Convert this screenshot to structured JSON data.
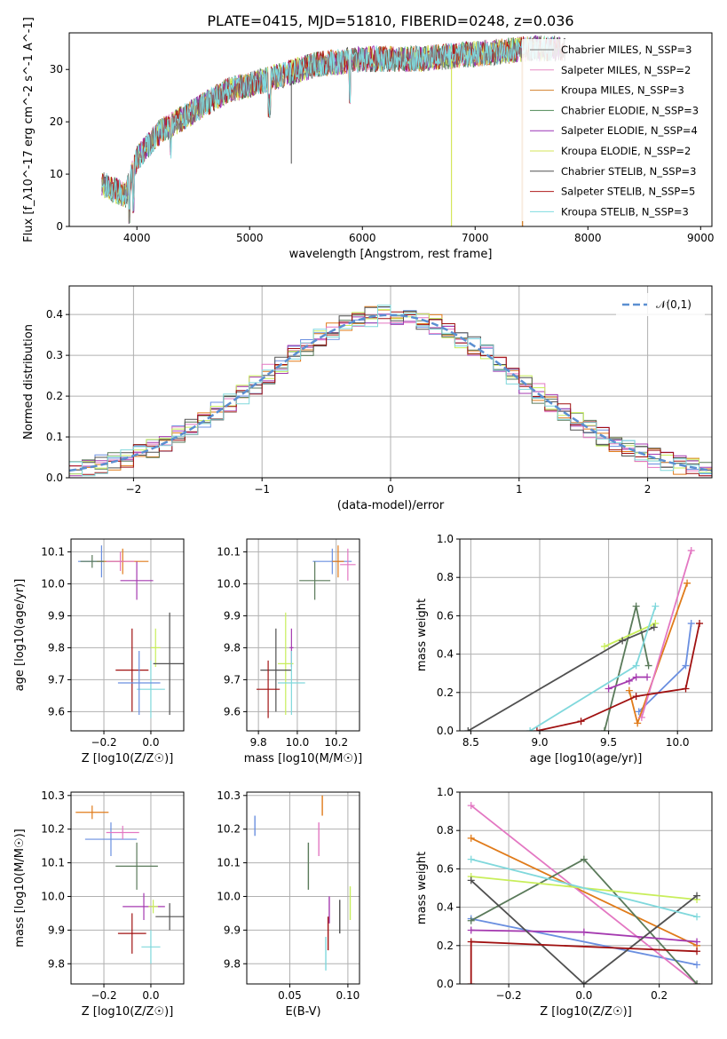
{
  "figure": {
    "title": "PLATE=0415, MJD=51810, FIBERID=0248, z=0.036"
  },
  "colors": {
    "series": [
      "#7a7a7a",
      "#e78ac3",
      "#d27f2a",
      "#4e8a55",
      "#9a32b5",
      "#d4e65a",
      "#505050",
      "#b01c1c",
      "#7fdbe0"
    ],
    "model_curve": [
      "#6a8fe0",
      "#e07b1a",
      "#e377c2",
      "#5a7a5a",
      "#a53ab0",
      "#c8ee5a",
      "#505050",
      "#a01010",
      "#80d8dc"
    ],
    "grid": "#b0b0b0",
    "normal_curve": "#5b8fd1"
  },
  "chart_data": [
    {
      "id": "spectrum",
      "type": "line",
      "xlabel": "wavelength [Angstrom, rest frame]",
      "ylabel": "Flux [f_λ10^-17 erg cm^-2 s^-1 A^-1]",
      "xlim": [
        3400,
        9100
      ],
      "ylim": [
        0,
        37
      ],
      "xticks": [
        4000,
        5000,
        6000,
        7000,
        8000,
        9000
      ],
      "yticks": [
        0,
        10,
        20,
        30
      ],
      "spectrum_envelope": {
        "x": [
          3700,
          3900,
          4000,
          4200,
          4500,
          4800,
          5000,
          5300,
          5600,
          6000,
          6500,
          7000,
          7500,
          7800
        ],
        "y": [
          8,
          6,
          13,
          18,
          22,
          26,
          27,
          29,
          31,
          32,
          32,
          33,
          34,
          34
        ]
      },
      "legend": [
        "Chabrier MILES, N_SSP=3",
        "Salpeter MILES, N_SSP=2",
        "Kroupa MILES, N_SSP=3",
        "Chabrier ELODIE, N_SSP=3",
        "Salpeter ELODIE, N_SSP=4",
        "Kroupa ELODIE, N_SSP=2",
        "Chabrier STELIB, N_SSP=3",
        "Salpeter STELIB, N_SSP=5",
        "Kroupa STELIB, N_SSP=3"
      ],
      "legend_position": "top-right",
      "grid": false
    },
    {
      "id": "residuals",
      "type": "histogram",
      "xlabel": "(data-model)/error",
      "ylabel": "Normed distribution",
      "xlim": [
        -2.5,
        2.5
      ],
      "ylim": [
        0,
        0.47
      ],
      "xticks": [
        -2,
        -1,
        0,
        1,
        2
      ],
      "yticks": [
        0.0,
        0.1,
        0.2,
        0.3,
        0.4
      ],
      "legend": [
        "𝒩(0,1)"
      ],
      "legend_position": "top-right",
      "grid": true
    },
    {
      "id": "age_vs_Z",
      "type": "scatter",
      "xlabel": "Z [log10(Z/Z☉)]",
      "ylabel": "age  [log10(age/yr)]",
      "xlim": [
        -0.34,
        0.14
      ],
      "ylim": [
        9.54,
        10.14
      ],
      "xticks": [
        -0.2,
        0.0
      ],
      "xticklabels": [
        "−0.2",
        "0.0"
      ],
      "yticks": [
        9.6,
        9.7,
        9.8,
        9.9,
        10.0,
        10.1
      ],
      "points": [
        {
          "x": -0.21,
          "y": 10.07,
          "dx": 0.1,
          "dy": 0.05
        },
        {
          "x": -0.12,
          "y": 10.07,
          "dx": 0.11,
          "dy": 0.04
        },
        {
          "x": -0.13,
          "y": 10.07,
          "dx": 0.06,
          "dy": 0.03
        },
        {
          "x": -0.25,
          "y": 10.07,
          "dx": 0.05,
          "dy": 0.02
        },
        {
          "x": -0.06,
          "y": 10.01,
          "dx": 0.07,
          "dy": 0.06
        },
        {
          "x": 0.02,
          "y": 9.8,
          "dx": 0.02,
          "dy": 0.06
        },
        {
          "x": 0.08,
          "y": 9.75,
          "dx": 0.07,
          "dy": 0.16
        },
        {
          "x": -0.08,
          "y": 9.73,
          "dx": 0.07,
          "dy": 0.13
        },
        {
          "x": 0.0,
          "y": 9.67,
          "dx": 0.06,
          "dy": 0.09
        },
        {
          "x": -0.05,
          "y": 9.69,
          "dx": 0.09,
          "dy": 0.1
        }
      ],
      "grid": true
    },
    {
      "id": "age_vs_mass",
      "type": "scatter",
      "xlabel": "mass [log10(M/M☉)]",
      "ylabel": "",
      "xlim": [
        9.74,
        10.32
      ],
      "ylim": [
        9.54,
        10.14
      ],
      "xticks": [
        9.8,
        10.0,
        10.2
      ],
      "yticks": [
        9.6,
        9.7,
        9.8,
        9.9,
        10.0,
        10.1
      ],
      "points": [
        {
          "x": 10.18,
          "y": 10.07,
          "dx": 0.1,
          "dy": 0.04
        },
        {
          "x": 10.21,
          "y": 10.07,
          "dx": 0.03,
          "dy": 0.05
        },
        {
          "x": 10.26,
          "y": 10.06,
          "dx": 0.04,
          "dy": 0.05
        },
        {
          "x": 10.09,
          "y": 10.01,
          "dx": 0.08,
          "dy": 0.06
        },
        {
          "x": 9.97,
          "y": 9.8,
          "dx": 0.01,
          "dy": 0.06
        },
        {
          "x": 9.94,
          "y": 9.75,
          "dx": 0.04,
          "dy": 0.16
        },
        {
          "x": 9.89,
          "y": 9.73,
          "dx": 0.08,
          "dy": 0.13
        },
        {
          "x": 9.85,
          "y": 9.67,
          "dx": 0.06,
          "dy": 0.09
        },
        {
          "x": 9.97,
          "y": 9.69,
          "dx": 0.07,
          "dy": 0.1
        }
      ],
      "grid": true
    },
    {
      "id": "weight_vs_age",
      "type": "line",
      "xlabel": "age  [log10(age/yr)]",
      "ylabel": "mass weight",
      "xlim": [
        8.42,
        10.25
      ],
      "ylim": [
        0,
        1
      ],
      "xticks": [
        8.5,
        9.0,
        9.5,
        10.0
      ],
      "yticks": [
        0.0,
        0.2,
        0.4,
        0.6,
        0.8,
        1.0
      ],
      "series": [
        {
          "x": [
            9.72,
            10.06,
            10.1
          ],
          "y": [
            0.1,
            0.34,
            0.56
          ]
        },
        {
          "x": [
            9.65,
            9.71,
            10.07
          ],
          "y": [
            0.21,
            0.04,
            0.77
          ]
        },
        {
          "x": [
            9.74,
            10.1
          ],
          "y": [
            0.07,
            0.94
          ]
        },
        {
          "x": [
            9.47,
            9.7,
            9.79
          ],
          "y": [
            0.0,
            0.65,
            0.34
          ]
        },
        {
          "x": [
            9.5,
            9.65,
            9.7,
            9.78
          ],
          "y": [
            0.22,
            0.26,
            0.28,
            0.28
          ]
        },
        {
          "x": [
            9.47,
            9.84
          ],
          "y": [
            0.44,
            0.56
          ]
        },
        {
          "x": [
            8.48,
            9.6,
            9.83
          ],
          "y": [
            0.0,
            0.47,
            0.54
          ]
        },
        {
          "x": [
            8.98,
            9.3,
            9.7,
            10.06,
            10.16
          ],
          "y": [
            0.0,
            0.05,
            0.18,
            0.22,
            0.56
          ]
        },
        {
          "x": [
            8.93,
            9.7,
            9.84
          ],
          "y": [
            0.0,
            0.34,
            0.65
          ]
        }
      ],
      "grid": true
    },
    {
      "id": "mass_vs_Z",
      "type": "scatter",
      "xlabel": "Z [log10(Z/Z☉)]",
      "ylabel": "mass [log10(M/M☉)]",
      "xlim": [
        -0.34,
        0.14
      ],
      "ylim": [
        9.74,
        10.31
      ],
      "xticks": [
        -0.2,
        0.0
      ],
      "xticklabels": [
        "−0.2",
        "0.0"
      ],
      "yticks": [
        9.8,
        9.9,
        10.0,
        10.1,
        10.2,
        10.3
      ],
      "points": [
        {
          "x": -0.17,
          "y": 10.17,
          "dx": 0.11,
          "dy": 0.05
        },
        {
          "x": -0.25,
          "y": 10.25,
          "dx": 0.07,
          "dy": 0.02
        },
        {
          "x": -0.12,
          "y": 10.19,
          "dx": 0.07,
          "dy": 0.02
        },
        {
          "x": -0.06,
          "y": 10.09,
          "dx": 0.09,
          "dy": 0.07
        },
        {
          "x": -0.03,
          "y": 9.97,
          "dx": 0.09,
          "dy": 0.04
        },
        {
          "x": 0.01,
          "y": 9.97,
          "dx": 0.02,
          "dy": 0.02
        },
        {
          "x": 0.08,
          "y": 9.94,
          "dx": 0.06,
          "dy": 0.04
        },
        {
          "x": -0.08,
          "y": 9.89,
          "dx": 0.06,
          "dy": 0.06
        },
        {
          "x": 0.0,
          "y": 9.85,
          "dx": 0.04,
          "dy": 0.05
        }
      ],
      "grid": true
    },
    {
      "id": "mass_vs_ebv",
      "type": "scatter",
      "xlabel": "E(B-V)",
      "ylabel": "",
      "xlim": [
        0.013,
        0.11
      ],
      "ylim": [
        9.74,
        10.31
      ],
      "xticks": [
        0.05,
        0.1
      ],
      "xticklabels": [
        "0.05",
        "0.10"
      ],
      "yticks": [
        9.8,
        9.9,
        10.0,
        10.1,
        10.2,
        10.3
      ],
      "bars": [
        {
          "x": 0.02,
          "y": 10.21,
          "dy": 0.03
        },
        {
          "x": 0.078,
          "y": 10.27,
          "dy": 0.03
        },
        {
          "x": 0.075,
          "y": 10.17,
          "dy": 0.05
        },
        {
          "x": 0.066,
          "y": 10.09,
          "dy": 0.07
        },
        {
          "x": 0.084,
          "y": 9.96,
          "dy": 0.04
        },
        {
          "x": 0.102,
          "y": 9.98,
          "dy": 0.05
        },
        {
          "x": 0.093,
          "y": 9.94,
          "dy": 0.05
        },
        {
          "x": 0.083,
          "y": 9.89,
          "dy": 0.05
        },
        {
          "x": 0.081,
          "y": 9.83,
          "dy": 0.05
        }
      ],
      "grid": true
    },
    {
      "id": "weight_vs_Z",
      "type": "line",
      "xlabel": "Z [log10(Z/Z☉)]",
      "ylabel": "mass weight",
      "xlim": [
        -0.33,
        0.34
      ],
      "ylim": [
        0,
        1
      ],
      "xticks": [
        -0.2,
        0.0,
        0.2
      ],
      "xticklabels": [
        "−0.2",
        "0.0",
        "0.2"
      ],
      "yticks": [
        0.0,
        0.2,
        0.4,
        0.6,
        0.8,
        1.0
      ],
      "series": [
        {
          "x": [
            -0.3,
            0.3
          ],
          "y": [
            0.34,
            0.1
          ]
        },
        {
          "x": [
            -0.3,
            0.3
          ],
          "y": [
            0.76,
            0.2
          ]
        },
        {
          "x": [
            -0.3,
            0.3
          ],
          "y": [
            0.93,
            0.0
          ]
        },
        {
          "x": [
            -0.3,
            0.0,
            0.3
          ],
          "y": [
            0.33,
            0.65,
            0.0
          ]
        },
        {
          "x": [
            -0.3,
            0.0,
            0.3
          ],
          "y": [
            0.28,
            0.27,
            0.22
          ]
        },
        {
          "x": [
            -0.3,
            0.3
          ],
          "y": [
            0.56,
            0.44
          ]
        },
        {
          "x": [
            -0.3,
            0.0,
            0.3
          ],
          "y": [
            0.54,
            0.0,
            0.46
          ]
        },
        {
          "x": [
            -0.3,
            -0.3,
            0.3
          ],
          "y": [
            0.0,
            0.22,
            0.17
          ]
        },
        {
          "x": [
            -0.3,
            0.3
          ],
          "y": [
            0.65,
            0.35
          ]
        }
      ],
      "grid": true
    }
  ]
}
